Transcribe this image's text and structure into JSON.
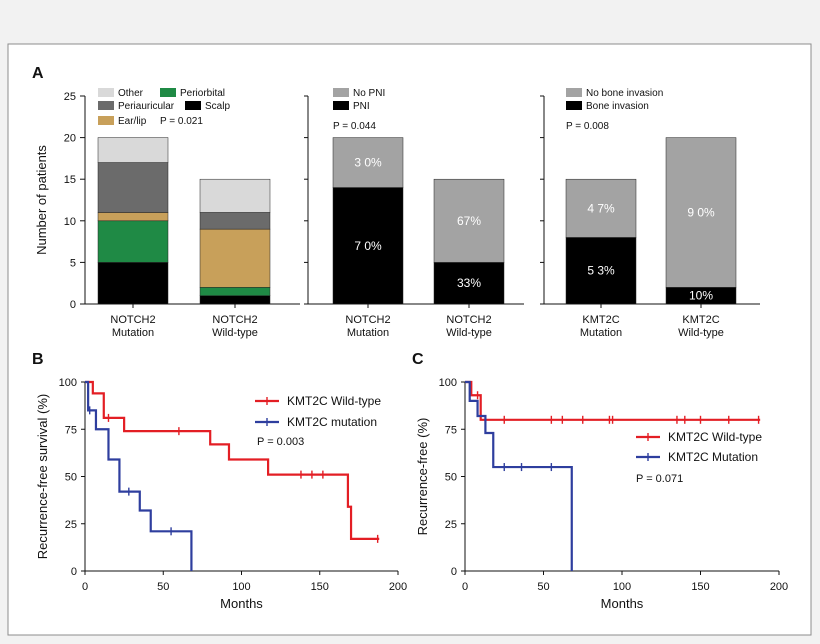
{
  "panels": {
    "A": "A",
    "B": "B",
    "C": "C"
  },
  "colors": {
    "other": "#d9d9d9",
    "periauricular": "#6b6b6b",
    "earlip": "#c8a05a",
    "periorbital": "#1f8a45",
    "scalp": "#000000",
    "no_pni": "#a3a3a3",
    "pni": "#000000",
    "no_bone": "#a3a3a3",
    "bone": "#000000",
    "wildtype": "#e31e24",
    "mutation": "#2e3e9e"
  },
  "chart_data": [
    {
      "type": "bar",
      "stacked": true,
      "panel": "A",
      "ylabel": "Number of patients",
      "ylim": [
        0,
        25
      ],
      "yticks": [
        0,
        5,
        10,
        15,
        20,
        25
      ],
      "categories": [
        "NOTCH2\nMutation",
        "NOTCH2\nWild-type"
      ],
      "series": [
        {
          "name": "Scalp",
          "values": [
            5,
            1
          ]
        },
        {
          "name": "Periorbital",
          "values": [
            5,
            1
          ]
        },
        {
          "name": "Ear/lip",
          "values": [
            1,
            7
          ]
        },
        {
          "name": "Periauricular",
          "values": [
            6,
            2
          ]
        },
        {
          "name": "Other",
          "values": [
            3,
            4
          ]
        }
      ],
      "pvalue": "P = 0.021"
    },
    {
      "type": "bar",
      "stacked": true,
      "panel": "A",
      "ylim": [
        0,
        25
      ],
      "categories": [
        "NOTCH2\nMutation",
        "NOTCH2\nWild-type"
      ],
      "series": [
        {
          "name": "PNI",
          "values": [
            14,
            5
          ],
          "labels": [
            "7 0%",
            "33%"
          ]
        },
        {
          "name": "No PNI",
          "values": [
            6,
            10
          ],
          "labels": [
            "3 0%",
            "67%"
          ]
        }
      ],
      "pvalue": "P = 0.044"
    },
    {
      "type": "bar",
      "stacked": true,
      "panel": "A",
      "ylim": [
        0,
        25
      ],
      "categories": [
        "KMT2C\nMutation",
        "KMT2C\nWild-type"
      ],
      "series": [
        {
          "name": "Bone invasion",
          "values": [
            8,
            2
          ],
          "labels": [
            "5 3%",
            "10%"
          ]
        },
        {
          "name": "No bone invasion",
          "values": [
            7,
            18
          ],
          "labels": [
            "4 7%",
            "9 0%"
          ]
        }
      ],
      "pvalue": "P = 0.008"
    },
    {
      "type": "line",
      "step": true,
      "panel": "B",
      "xlabel": "Months",
      "ylabel": "Recurrence-free survival (%)",
      "xlim": [
        0,
        200
      ],
      "ylim": [
        0,
        100
      ],
      "xticks": [
        0,
        50,
        100,
        150,
        200
      ],
      "yticks": [
        0,
        25,
        50,
        75,
        100
      ],
      "series": [
        {
          "name": "KMT2C Wild-type",
          "x": [
            0,
            5,
            12,
            25,
            80,
            92,
            117,
            168,
            170,
            188
          ],
          "y": [
            100,
            94,
            81,
            74,
            67,
            59,
            51,
            34,
            17,
            17
          ],
          "censor_x": [
            15,
            60,
            138,
            145,
            152,
            187
          ],
          "censor_y": [
            81,
            74,
            51,
            51,
            51,
            17
          ]
        },
        {
          "name": "KMT2C mutation",
          "x": [
            0,
            2,
            4,
            7,
            12,
            15,
            22,
            35,
            42,
            68
          ],
          "y": [
            100,
            85,
            85,
            75,
            75,
            59,
            42,
            32,
            21,
            0
          ],
          "censor_x": [
            3,
            28,
            55
          ],
          "censor_y": [
            85,
            42,
            21
          ]
        }
      ],
      "pvalue": "P = 0.003"
    },
    {
      "type": "line",
      "step": true,
      "panel": "C",
      "xlabel": "Months",
      "ylabel": "Recurrence-free (%)",
      "xlim": [
        0,
        200
      ],
      "ylim": [
        0,
        100
      ],
      "xticks": [
        0,
        50,
        100,
        150,
        200
      ],
      "yticks": [
        0,
        25,
        50,
        75,
        100
      ],
      "series": [
        {
          "name": "KMT2C Wild-type",
          "x": [
            0,
            4,
            10,
            188
          ],
          "y": [
            100,
            93,
            80,
            80
          ],
          "censor_x": [
            8,
            25,
            55,
            62,
            75,
            92,
            94,
            135,
            140,
            150,
            168,
            187
          ],
          "censor_y": [
            93,
            80,
            80,
            80,
            80,
            80,
            80,
            80,
            80,
            80,
            80,
            80
          ]
        },
        {
          "name": "KMT2C Mutation",
          "x": [
            0,
            3,
            8,
            13,
            18,
            68
          ],
          "y": [
            100,
            90,
            82,
            73,
            55,
            0
          ],
          "censor_x": [
            25,
            36,
            55
          ],
          "censor_y": [
            55,
            55,
            55
          ]
        }
      ],
      "pvalue": "P = 0.071"
    }
  ]
}
